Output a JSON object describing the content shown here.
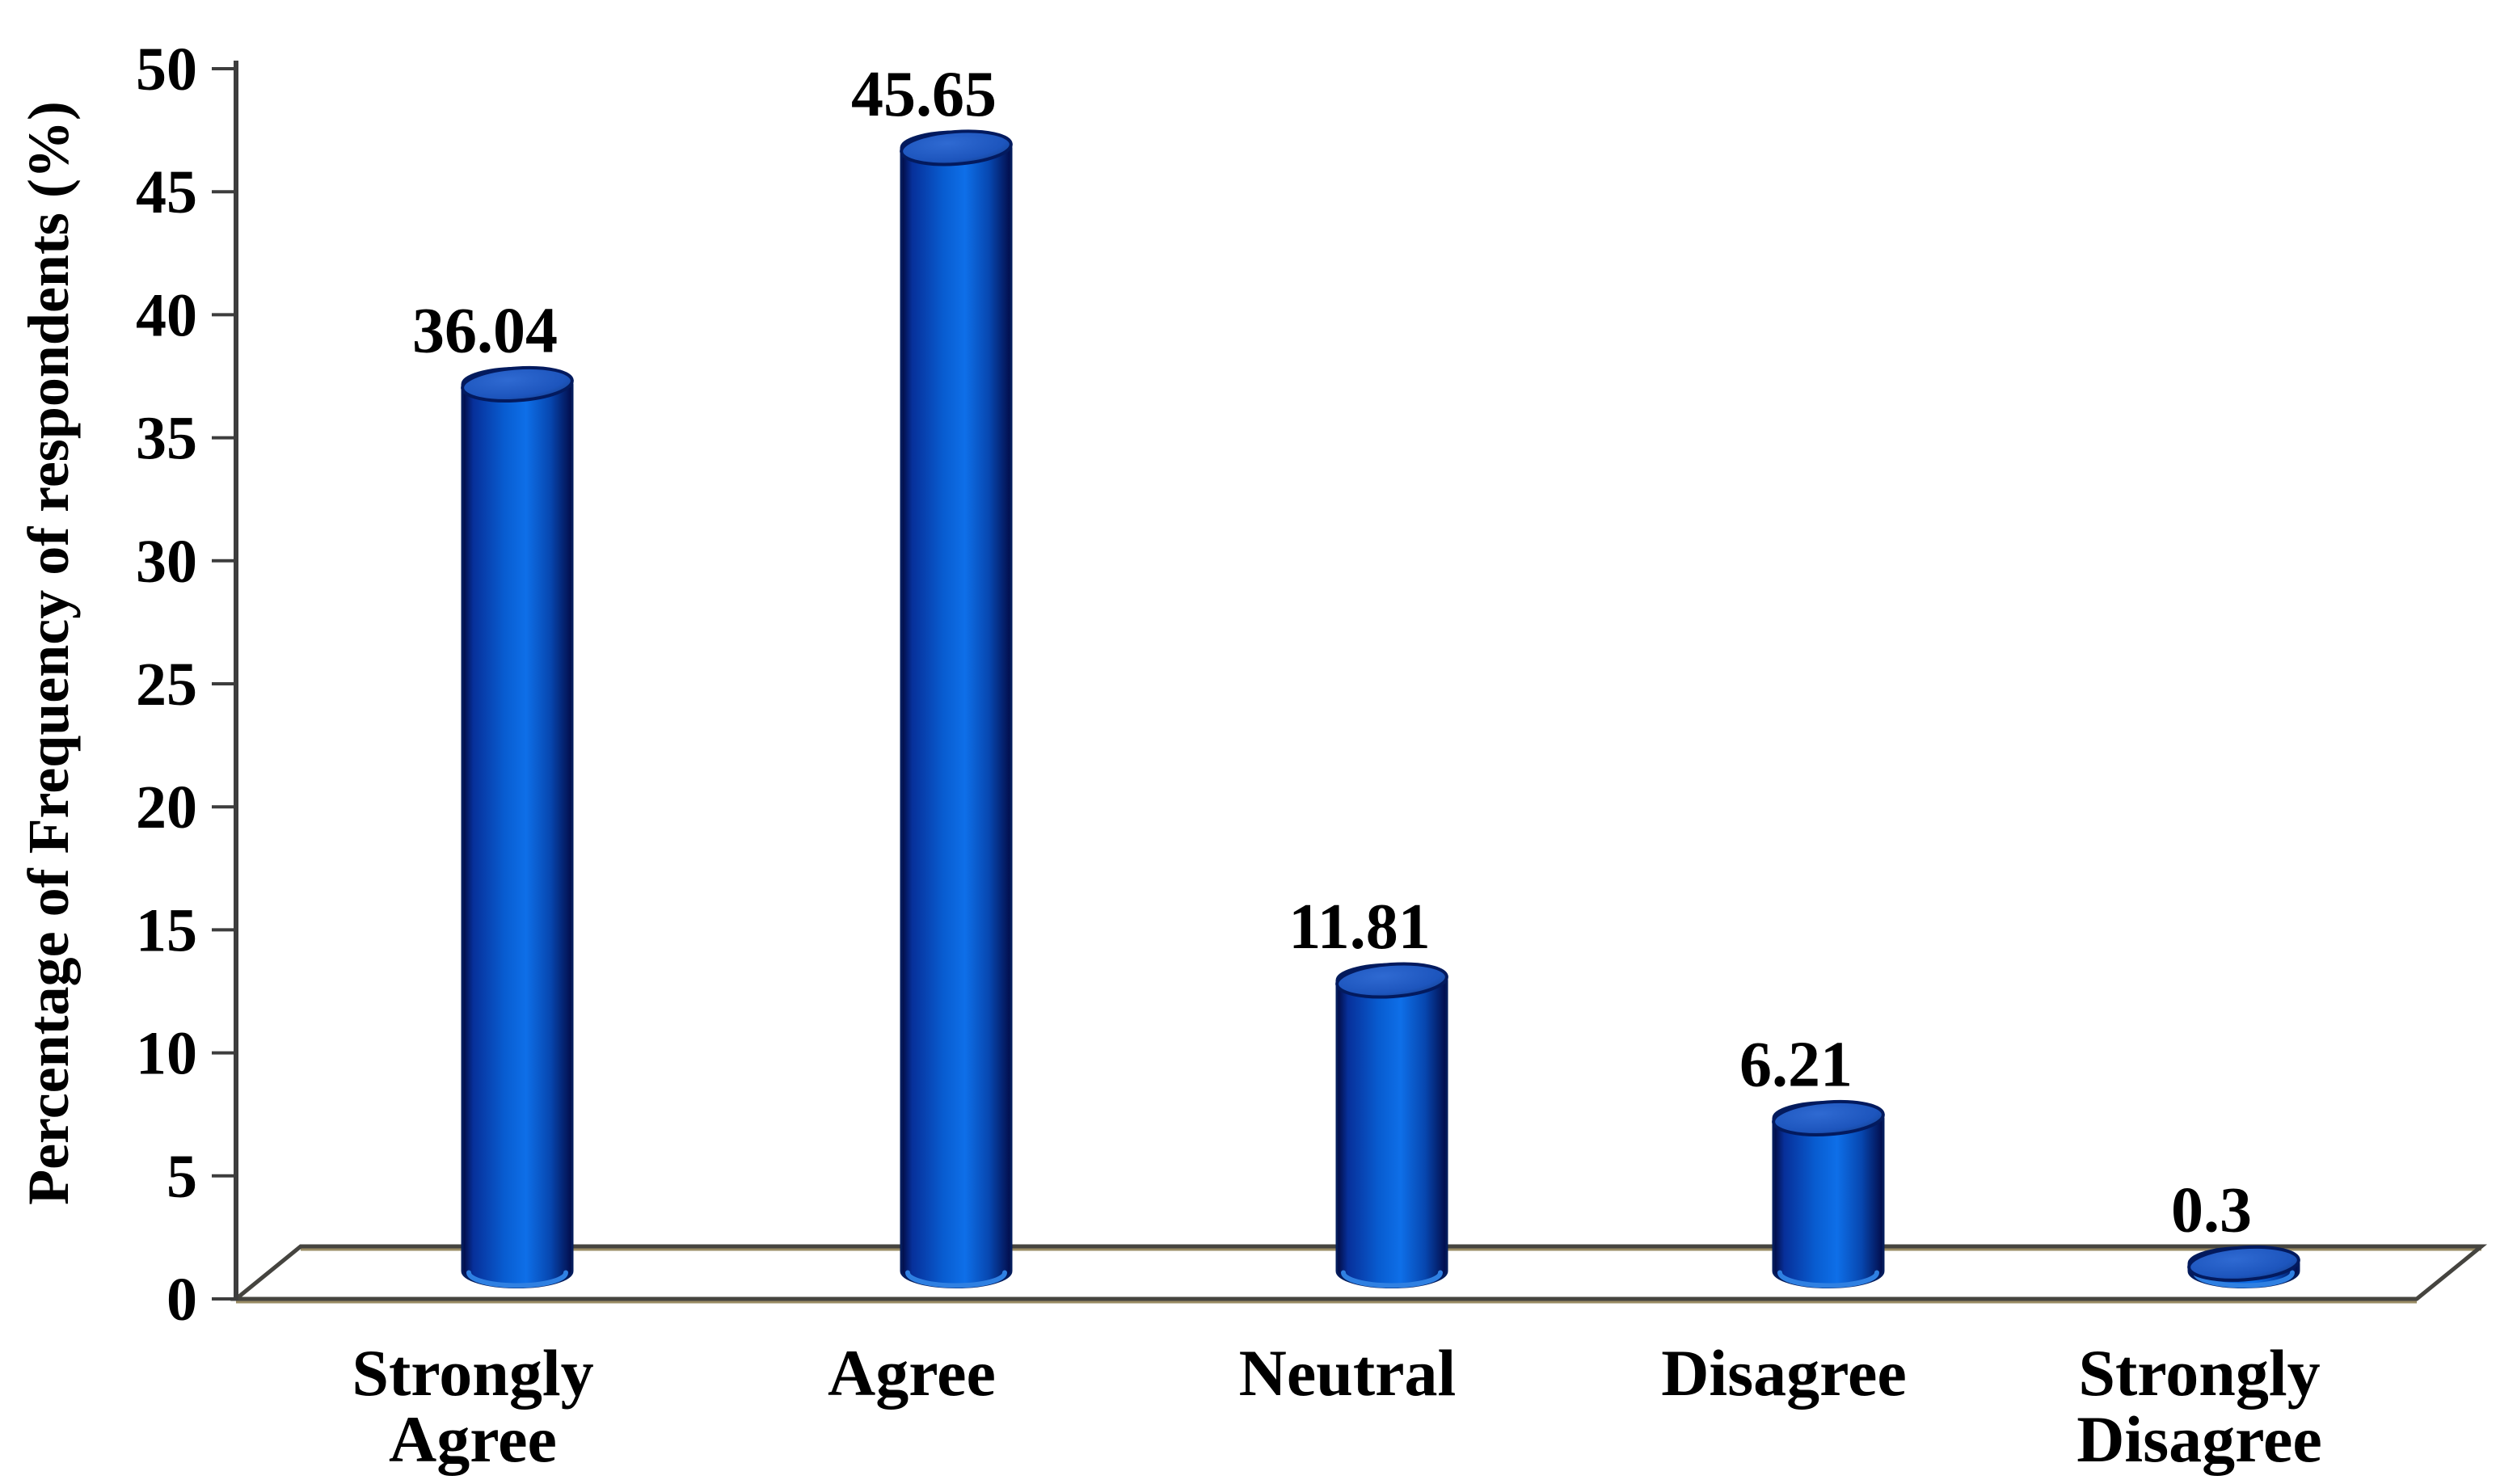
{
  "chart_data": {
    "type": "bar",
    "style": "3d-cylinder",
    "title": "",
    "xlabel": "",
    "ylabel": "Percentage of Frequency of respondents (%)",
    "categories": [
      "Strongly Agree",
      "Agree",
      "Neutral",
      "Disagree",
      "Strongly Disagree"
    ],
    "categories_lines": [
      [
        "Strongly",
        "Agree"
      ],
      [
        "Agree"
      ],
      [
        "Neutral"
      ],
      [
        "Disagree"
      ],
      [
        "Strongly",
        "Disagree"
      ]
    ],
    "values": [
      36.04,
      45.65,
      11.81,
      6.21,
      0.3
    ],
    "data_labels": [
      "36.04",
      "45.65",
      "11.81",
      "6.21",
      "0.3"
    ],
    "ylim": [
      0,
      50
    ],
    "ytick_step": 5,
    "yticks": [
      0,
      5,
      10,
      15,
      20,
      25,
      30,
      35,
      40,
      45,
      50
    ],
    "grid": false,
    "legend_position": "none",
    "background": "#ffffff",
    "colors": {
      "bar_edge_dark": "#02094a",
      "bar_mid": "#0652c4",
      "bar_highlight": "#0e6fe8",
      "bar_top_fill": "#1d55bd",
      "bar_top_edge": "#031a5e",
      "bar_outline": "#041c5c",
      "bar_bottom_rim": "#2f80e2",
      "axis_line": "#3d3d3d",
      "floor_edge_dark": "#45443f",
      "floor_edge_tan": "#9a8c64",
      "floor_fill": "#ffffff",
      "text": "#000000"
    }
  }
}
